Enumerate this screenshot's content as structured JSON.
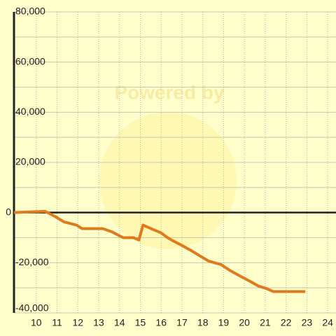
{
  "chart_data": {
    "type": "line",
    "watermark": "Powered by",
    "x": [
      8.93,
      10.43,
      10.93,
      11.33,
      11.93,
      12.2,
      13.2,
      13.67,
      14.17,
      14.67,
      14.93,
      15.13,
      15.6,
      16.0,
      16.27,
      16.6,
      17.0,
      17.43,
      17.87,
      18.27,
      18.6,
      18.87,
      19.33,
      19.77,
      20.27,
      20.67,
      21.0,
      21.4,
      22.27,
      22.93
    ],
    "series": [
      {
        "color": "#e07a1f",
        "values": [
          0,
          500,
          -1700,
          -3700,
          -5000,
          -6400,
          -6400,
          -7800,
          -10000,
          -10000,
          -10900,
          -5000,
          -6700,
          -8100,
          -9800,
          -11400,
          -13100,
          -15100,
          -17300,
          -19300,
          -20100,
          -20700,
          -23200,
          -25200,
          -27400,
          -29300,
          -30100,
          -31500,
          -31500,
          -31500
        ]
      }
    ],
    "xlim": [
      8.93,
      24.4
    ],
    "ylim": [
      -40000,
      80000
    ],
    "xticks": [
      10,
      11,
      12,
      13,
      14,
      15,
      16,
      17,
      18,
      19,
      20,
      21,
      22,
      23,
      24
    ],
    "yticks": [
      {
        "value": -40000,
        "label": "-40,000"
      },
      {
        "value": -20000,
        "label": "-20,000"
      },
      0,
      {
        "value": 20000,
        "label": "20,000"
      },
      {
        "value": 40000,
        "label": "40,000"
      },
      {
        "value": 60000,
        "label": "60,000"
      },
      {
        "value": 80000,
        "label": "80,000"
      }
    ],
    "y_minor_grid": [
      -30000,
      -10000,
      10000,
      30000,
      50000,
      70000
    ],
    "grid": true
  }
}
